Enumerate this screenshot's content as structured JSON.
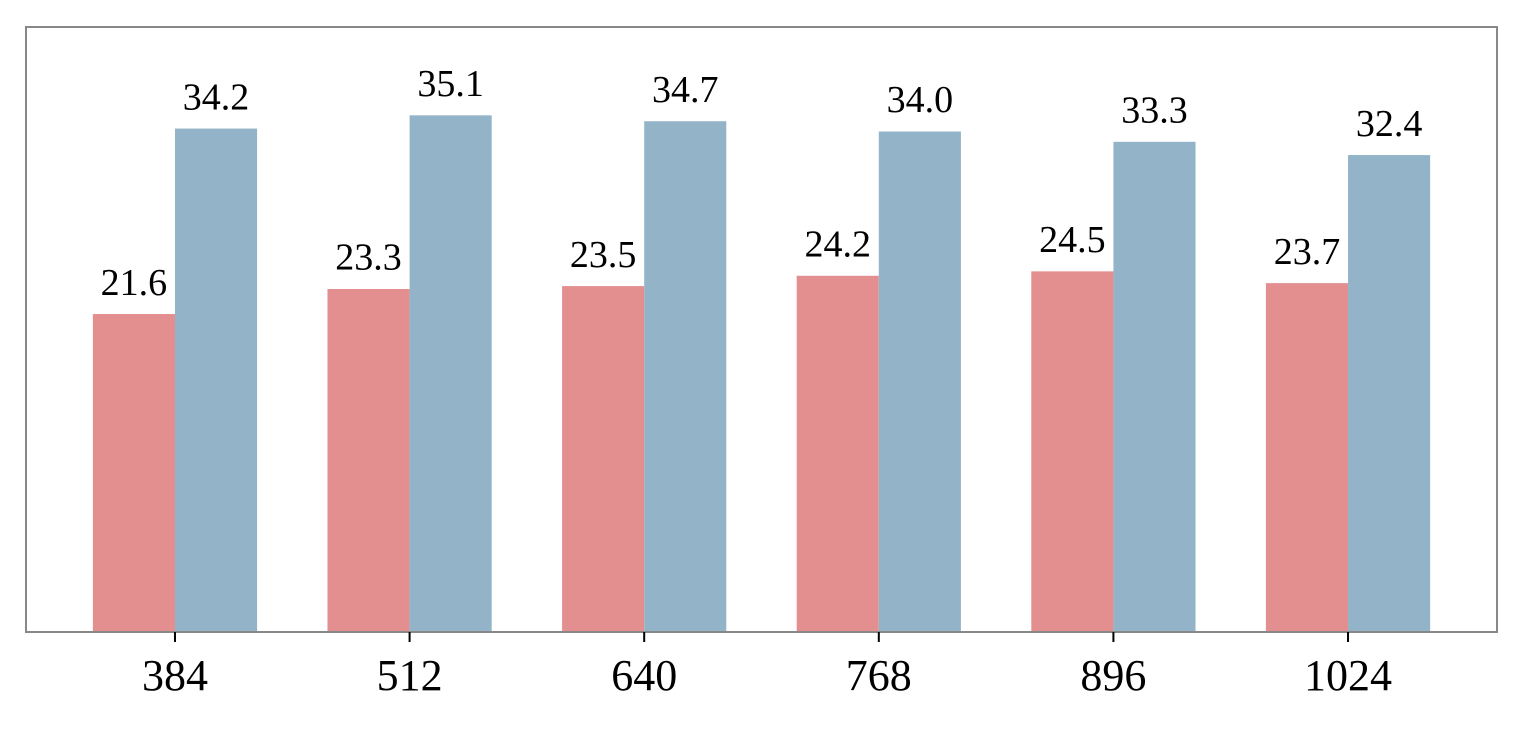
{
  "chart_data": {
    "type": "bar",
    "categories": [
      "384",
      "512",
      "640",
      "768",
      "896",
      "1024"
    ],
    "series": [
      {
        "color": "#e38e8f",
        "values": [
          21.6,
          23.3,
          23.5,
          24.2,
          24.5,
          23.7
        ],
        "value_labels": [
          "21.6",
          "23.3",
          "23.5",
          "24.2",
          "24.5",
          "23.7"
        ]
      },
      {
        "color": "#93b4c8",
        "values": [
          34.2,
          35.1,
          34.7,
          34.0,
          33.3,
          32.4
        ],
        "value_labels": [
          "34.2",
          "35.1",
          "34.7",
          "34.0",
          "33.3",
          "32.4"
        ]
      }
    ],
    "ylim": [
      0,
      41.1
    ]
  }
}
